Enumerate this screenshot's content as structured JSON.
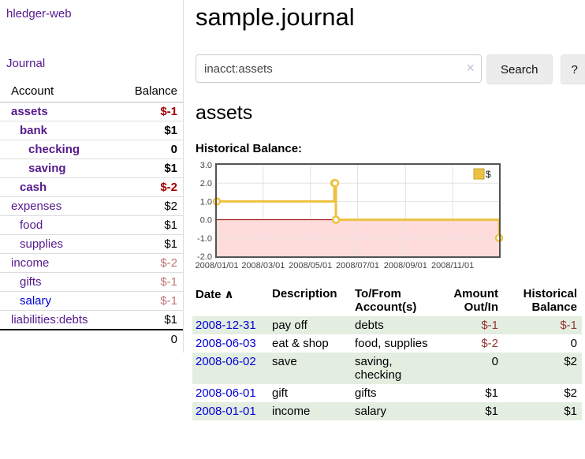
{
  "colors": {
    "link_purple": "#551a8b",
    "link_blue": "#0000d8",
    "negative_strong": "#a00000",
    "negative_faded": "#c17676",
    "negative_table": "#993333",
    "row_shade_green": "#e3eee1",
    "chart_line": "#edc240",
    "chart_negative_fill": "#ffdcdc",
    "chart_zero_line": "#990000",
    "chart_border": "#545454"
  },
  "sidebar": {
    "brand": "hledger-web",
    "journal_link": "Journal",
    "accounts_table": {
      "headers": {
        "account": "Account",
        "balance": "Balance"
      },
      "rows": [
        {
          "name": "assets",
          "indent": 1,
          "bold": true,
          "balance": "$-1",
          "balance_class": "neg-strong"
        },
        {
          "name": "bank",
          "indent": 2,
          "bold": true,
          "balance": "$1",
          "balance_class": ""
        },
        {
          "name": "checking",
          "indent": 3,
          "bold": true,
          "balance": "0",
          "balance_class": ""
        },
        {
          "name": "saving",
          "indent": 3,
          "bold": true,
          "balance": "$1",
          "balance_class": ""
        },
        {
          "name": "cash",
          "indent": 2,
          "bold": true,
          "balance": "$-2",
          "balance_class": "neg-strong"
        },
        {
          "name": "expenses",
          "indent": 1,
          "bold": false,
          "balance": "$2",
          "balance_class": ""
        },
        {
          "name": "food",
          "indent": 2,
          "bold": false,
          "balance": "$1",
          "balance_class": ""
        },
        {
          "name": "supplies",
          "indent": 2,
          "bold": false,
          "balance": "$1",
          "balance_class": ""
        },
        {
          "name": "income",
          "indent": 1,
          "bold": false,
          "balance": "$-2",
          "balance_class": "neg-faded"
        },
        {
          "name": "gifts",
          "indent": 2,
          "bold": false,
          "balance": "$-1",
          "balance_class": "neg-faded"
        },
        {
          "name": "salary",
          "indent": 2,
          "bold": false,
          "balance": "$-1",
          "balance_class": "neg-faded",
          "link_blue": true
        },
        {
          "name": "liabilities:debts",
          "indent": 1,
          "bold": false,
          "balance": "$1",
          "balance_class": ""
        }
      ],
      "total": "0"
    }
  },
  "header": {
    "title": "sample.journal"
  },
  "search": {
    "query": "inacct:assets",
    "clear_icon": "×",
    "button_label": "Search",
    "help_label": "?"
  },
  "account_page": {
    "title": "assets",
    "chart_label": "Historical Balance:"
  },
  "chart_data": {
    "type": "line",
    "style": "steps",
    "title": "Historical Balance of assets",
    "legend": [
      {
        "label": "$",
        "color": "#edc240",
        "border": "#c3a32f"
      }
    ],
    "legend_position": "top-right",
    "grid": true,
    "y_range": [
      -2,
      3
    ],
    "y_ticks": [
      "3.0",
      "2.0",
      "1.0",
      "0.0",
      "-1.0",
      "-2.0"
    ],
    "y_tick_values": [
      3,
      2,
      1,
      0,
      -1,
      -2
    ],
    "x_range_days": [
      0,
      365
    ],
    "x_ticks": [
      {
        "label": "2008/01/01",
        "day": 0
      },
      {
        "label": "2008/03/01",
        "day": 60
      },
      {
        "label": "2008/05/01",
        "day": 121
      },
      {
        "label": "2008/07/01",
        "day": 182
      },
      {
        "label": "2008/09/01",
        "day": 244
      },
      {
        "label": "2008/11/01",
        "day": 305
      }
    ],
    "points": [
      {
        "date": "2008-01-01",
        "day": 0,
        "value": 1
      },
      {
        "date": "2008-06-01",
        "day": 152,
        "value": 2
      },
      {
        "date": "2008-06-02",
        "day": 153,
        "value": 2
      },
      {
        "date": "2008-06-03",
        "day": 154,
        "value": 0
      },
      {
        "date": "2008-12-31",
        "day": 365,
        "value": -1
      }
    ],
    "line_color": "#edc240",
    "marker_fill": "#ffffff",
    "negative_region_color": "#ffdcdc",
    "zero_line_color": "#990000",
    "border_color": "#545454",
    "grid_color": "#e3e3e3"
  },
  "register": {
    "columns": [
      {
        "label": "Date"
      },
      {
        "label": "Description"
      },
      {
        "label": "To/From Account(s)"
      },
      {
        "label": "Amount Out/In"
      },
      {
        "label": "Historical Balance"
      }
    ],
    "sort_icon": "∧",
    "rows": [
      {
        "date": "2008-12-31",
        "description": "pay off",
        "accounts": "debts",
        "amount": "$-1",
        "amount_negative": true,
        "balance": "$-1",
        "balance_negative": true,
        "shade": true
      },
      {
        "date": "2008-06-03",
        "description": "eat & shop",
        "accounts": "food, supplies",
        "amount": "$-2",
        "amount_negative": true,
        "balance": "0",
        "balance_negative": false,
        "shade": false
      },
      {
        "date": "2008-06-02",
        "description": "save",
        "accounts": "saving, checking",
        "amount": "0",
        "amount_negative": false,
        "balance": "$2",
        "balance_negative": false,
        "shade": true
      },
      {
        "date": "2008-06-01",
        "description": "gift",
        "accounts": "gifts",
        "amount": "$1",
        "amount_negative": false,
        "balance": "$2",
        "balance_negative": false,
        "shade": false
      },
      {
        "date": "2008-01-01",
        "description": "income",
        "accounts": "salary",
        "amount": "$1",
        "amount_negative": false,
        "balance": "$1",
        "balance_negative": false,
        "shade": true
      }
    ]
  }
}
